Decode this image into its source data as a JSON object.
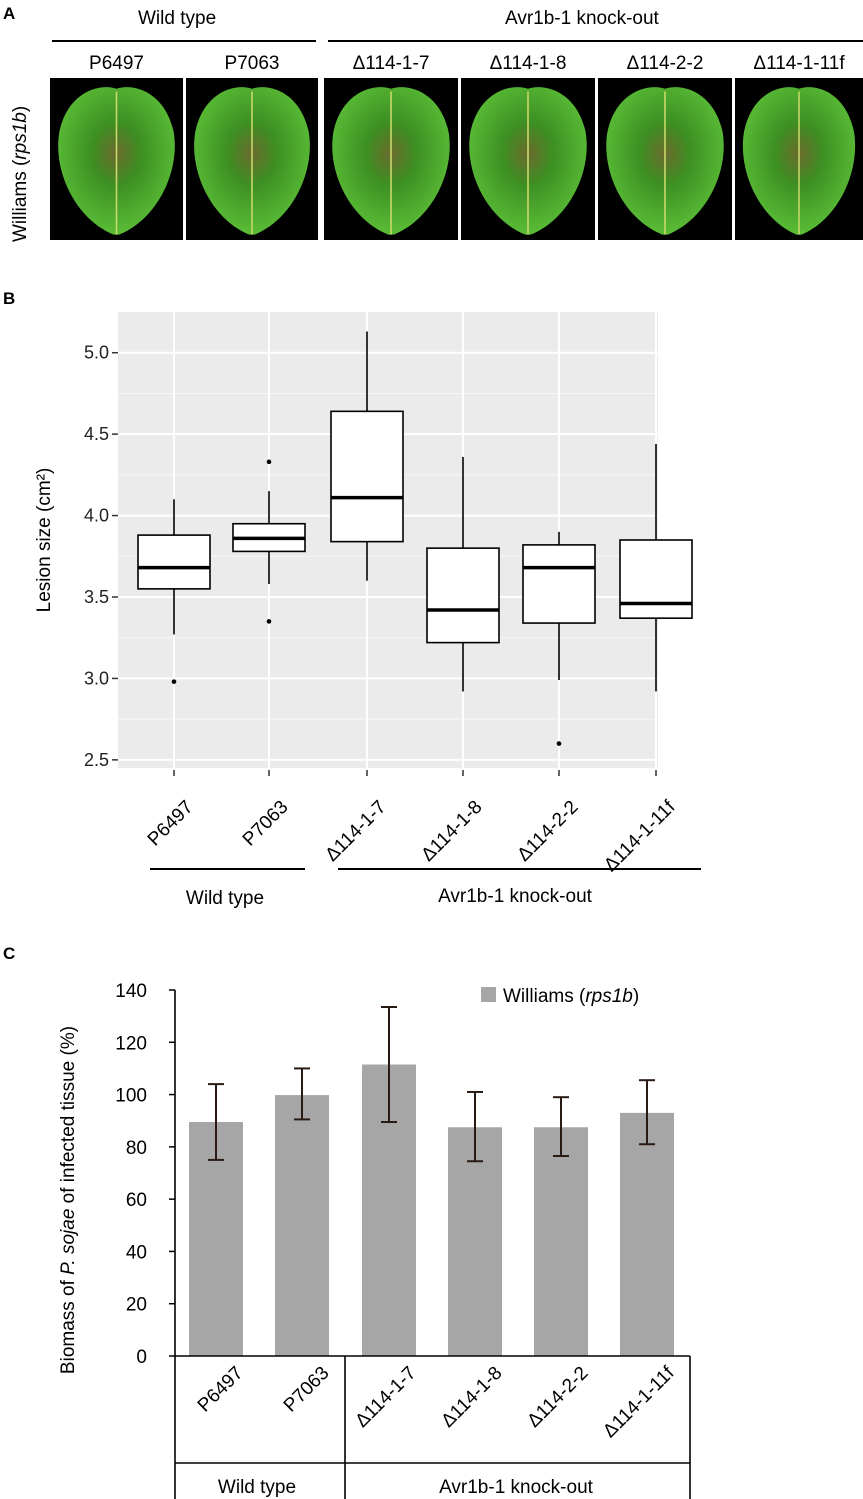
{
  "panel_a": {
    "letter": "A",
    "group_wild": "Wild type",
    "group_ko": "Avr1b-1 knock-out",
    "row_label_prefix": "Williams (",
    "row_label_italic": "rps1b",
    "row_label_suffix": ")",
    "strains": [
      "P6497",
      "P7063",
      "Δ114-1-7",
      "Δ114-1-8",
      "Δ114-2-2",
      "Δ114-1-11f"
    ]
  },
  "colors": {
    "leaf_light": "#5fc43a",
    "leaf_dark": "#3d8f22",
    "lesion": "#6b6a2e",
    "grid_bg": "#ebebeb",
    "bar": "#a6a6a6"
  },
  "chart_data": [
    {
      "type": "box",
      "panel": "B",
      "ylabel": "Lesion size (cm²)",
      "ylim": [
        2.45,
        5.25
      ],
      "yticks": [
        "2.5",
        "3.0",
        "3.5",
        "4.0",
        "4.5",
        "5.0"
      ],
      "categories": [
        "P6497",
        "P7063",
        "Δ114-1-7",
        "Δ114-1-8",
        "Δ114-2-2",
        "Δ114-1-11f"
      ],
      "groups": [
        {
          "label": "Wild type",
          "members": [
            "P6497",
            "P7063"
          ]
        },
        {
          "label": "Avr1b-1 knock-out",
          "members": [
            "Δ114-1-7",
            "Δ114-1-8",
            "Δ114-2-2",
            "Δ114-1-11f"
          ]
        }
      ],
      "boxes": [
        {
          "min": 3.27,
          "q1": 3.55,
          "median": 3.68,
          "q3": 3.88,
          "max": 4.1,
          "outliers": [
            2.98
          ]
        },
        {
          "min": 3.58,
          "q1": 3.78,
          "median": 3.86,
          "q3": 3.95,
          "max": 4.15,
          "outliers": [
            4.33,
            3.35
          ]
        },
        {
          "min": 3.6,
          "q1": 3.84,
          "median": 4.11,
          "q3": 4.64,
          "max": 5.13,
          "outliers": []
        },
        {
          "min": 2.92,
          "q1": 3.22,
          "median": 3.42,
          "q3": 3.8,
          "max": 4.36,
          "outliers": []
        },
        {
          "min": 2.99,
          "q1": 3.34,
          "median": 3.68,
          "q3": 3.82,
          "max": 3.9,
          "outliers": [
            2.6
          ]
        },
        {
          "min": 2.92,
          "q1": 3.37,
          "median": 3.46,
          "q3": 3.85,
          "max": 4.44,
          "outliers": []
        }
      ],
      "grid": true
    },
    {
      "type": "bar",
      "panel": "C",
      "ylabel_prefix": "Biomass of ",
      "ylabel_italic": "P. sojae",
      "ylabel_suffix": " of infected tissue (%)",
      "legend_prefix": "Williams (",
      "legend_italic": "rps1b",
      "legend_suffix": ")",
      "legend_position": "top-right",
      "ylim": [
        0,
        140
      ],
      "yticks": [
        "0",
        "20",
        "40",
        "60",
        "80",
        "100",
        "120",
        "140"
      ],
      "categories": [
        "P6497",
        "P7063",
        "Δ114-1-7",
        "Δ114-1-8",
        "Δ114-2-2",
        "Δ114-1-11f"
      ],
      "series": [
        {
          "name": "Williams (rps1b)",
          "values": [
            89.5,
            99.8,
            111.5,
            87.5,
            87.5,
            93.0
          ],
          "error_low": [
            75,
            90.5,
            89.5,
            74.5,
            76.5,
            81
          ],
          "error_high": [
            104,
            110,
            133.5,
            101,
            99,
            105.5
          ]
        }
      ],
      "groups": [
        {
          "label": "Wild type",
          "members": [
            "P6497",
            "P7063"
          ]
        },
        {
          "label": "Avr1b-1 knock-out",
          "members": [
            "Δ114-1-7",
            "Δ114-1-8",
            "Δ114-2-2",
            "Δ114-1-11f"
          ]
        }
      ]
    }
  ]
}
